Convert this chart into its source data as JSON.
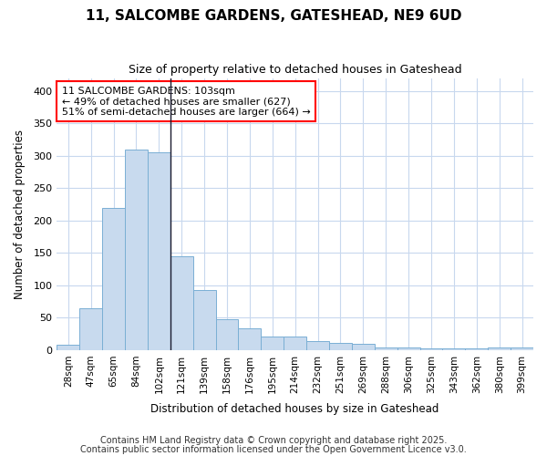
{
  "title": "11, SALCOMBE GARDENS, GATESHEAD, NE9 6UD",
  "subtitle": "Size of property relative to detached houses in Gateshead",
  "xlabel": "Distribution of detached houses by size in Gateshead",
  "ylabel": "Number of detached properties",
  "bar_color": "#c8daee",
  "bar_edge_color": "#7aafd4",
  "marker_line_color": "#1a1a2e",
  "background_color": "#ffffff",
  "grid_color": "#c8d8ee",
  "categories": [
    "28sqm",
    "47sqm",
    "65sqm",
    "84sqm",
    "102sqm",
    "121sqm",
    "139sqm",
    "158sqm",
    "176sqm",
    "195sqm",
    "214sqm",
    "232sqm",
    "251sqm",
    "269sqm",
    "288sqm",
    "306sqm",
    "325sqm",
    "343sqm",
    "362sqm",
    "380sqm",
    "399sqm"
  ],
  "values": [
    8,
    64,
    220,
    310,
    305,
    145,
    93,
    48,
    33,
    21,
    21,
    14,
    11,
    10,
    4,
    4,
    3,
    3,
    3,
    4,
    4
  ],
  "marker_bin_index": 4,
  "annotation_line1": "11 SALCOMBE GARDENS: 103sqm",
  "annotation_line2": "← 49% of detached houses are smaller (627)",
  "annotation_line3": "51% of semi-detached houses are larger (664) →",
  "ylim": [
    0,
    420
  ],
  "yticks": [
    0,
    50,
    100,
    150,
    200,
    250,
    300,
    350,
    400
  ],
  "footer1": "Contains HM Land Registry data © Crown copyright and database right 2025.",
  "footer2": "Contains public sector information licensed under the Open Government Licence v3.0."
}
